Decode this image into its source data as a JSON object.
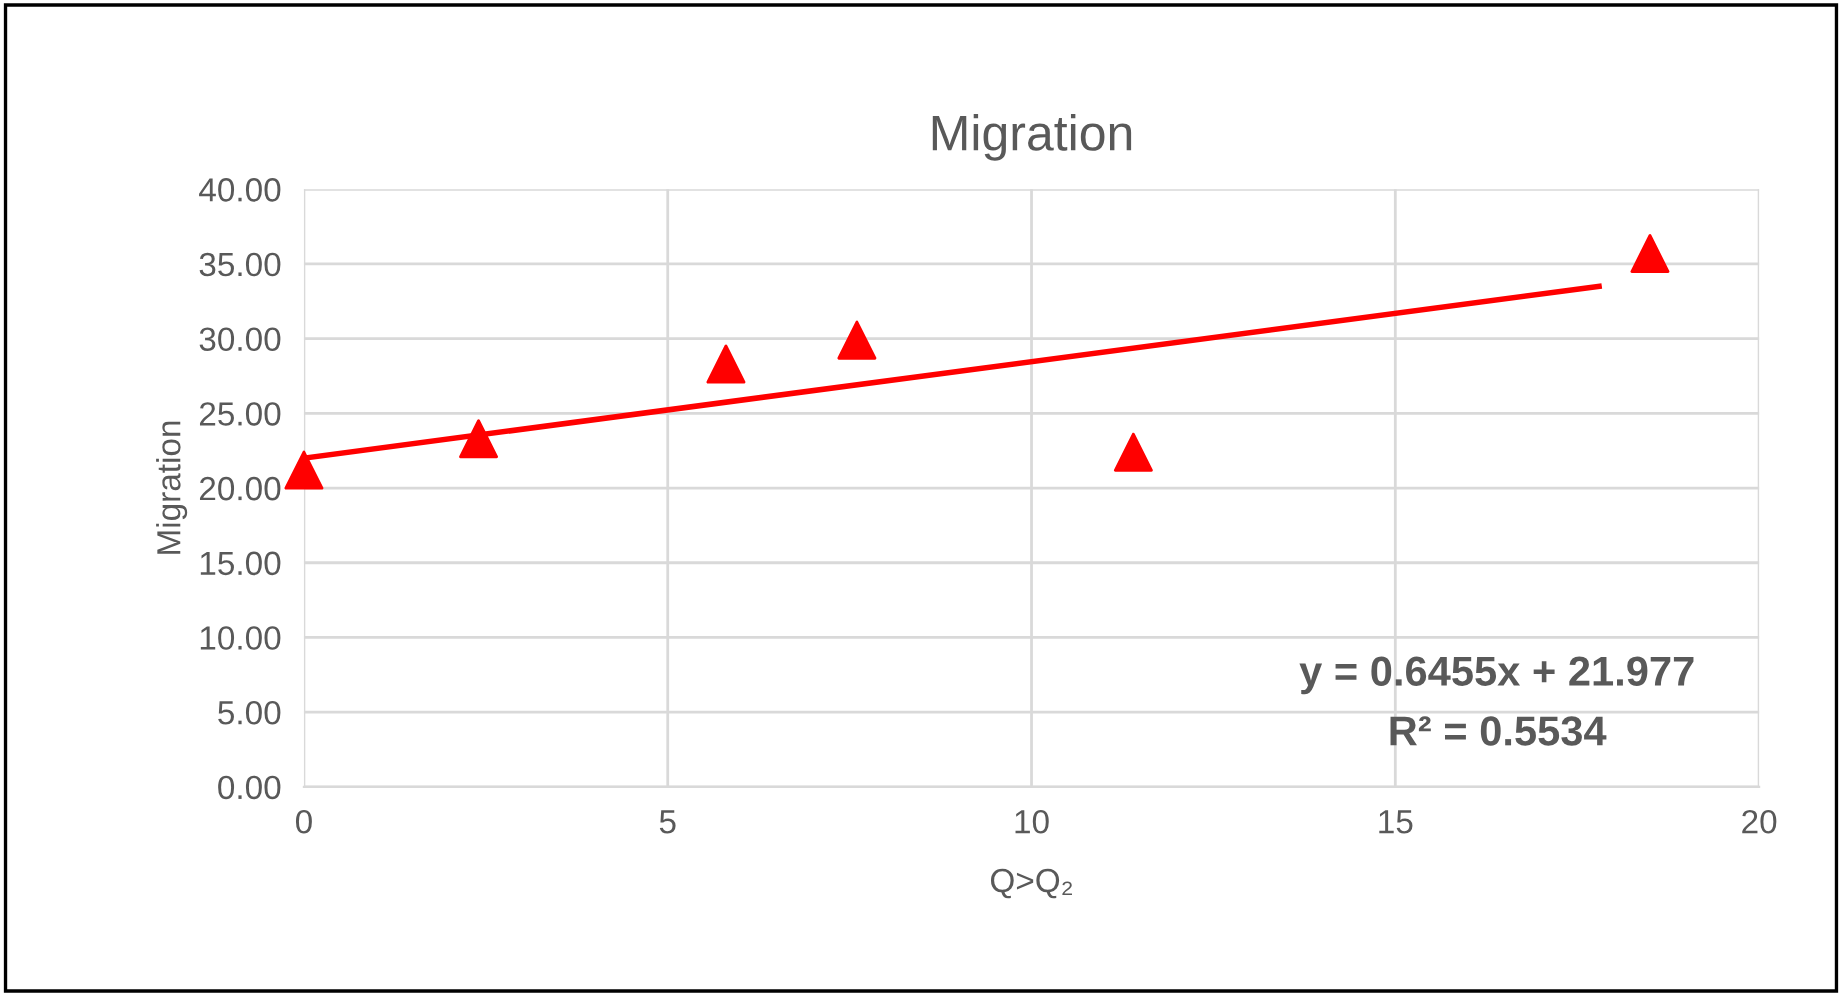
{
  "chart_data": {
    "type": "scatter",
    "title": "Migration",
    "xlabel": "Q>Q₂",
    "ylabel": "Migration",
    "series": [
      {
        "color": "#ff0000",
        "x": [
          0,
          2.4,
          5.8,
          7.6,
          11.4,
          18.5
        ],
        "values": [
          21.2,
          23.3,
          28.3,
          29.9,
          22.4,
          35.7
        ],
        "marker": "triangle"
      },
      {
        "type": "line",
        "color": "#ff0000",
        "x": [
          0,
          17.8
        ],
        "values": [
          22.0,
          33.5
        ],
        "marker": "none"
      }
    ],
    "xlim": [
      0,
      20
    ],
    "xticks": [
      0,
      5,
      10,
      15,
      20
    ],
    "ylim": [
      0,
      40
    ],
    "yticks": [
      {
        "value": 0,
        "label": "0.00"
      },
      {
        "value": 5,
        "label": "5.00"
      },
      {
        "value": 10,
        "label": "10.00"
      },
      {
        "value": 15,
        "label": "15.00"
      },
      {
        "value": 20,
        "label": "20.00"
      },
      {
        "value": 25,
        "label": "25.00"
      },
      {
        "value": 30,
        "label": "30.00"
      },
      {
        "value": 35,
        "label": "35.00"
      },
      {
        "value": 40,
        "label": "40.00"
      }
    ],
    "grid": true,
    "legend": false,
    "annotations": [
      "y = 0.6455x + 21.977",
      "R² = 0.5534"
    ]
  }
}
